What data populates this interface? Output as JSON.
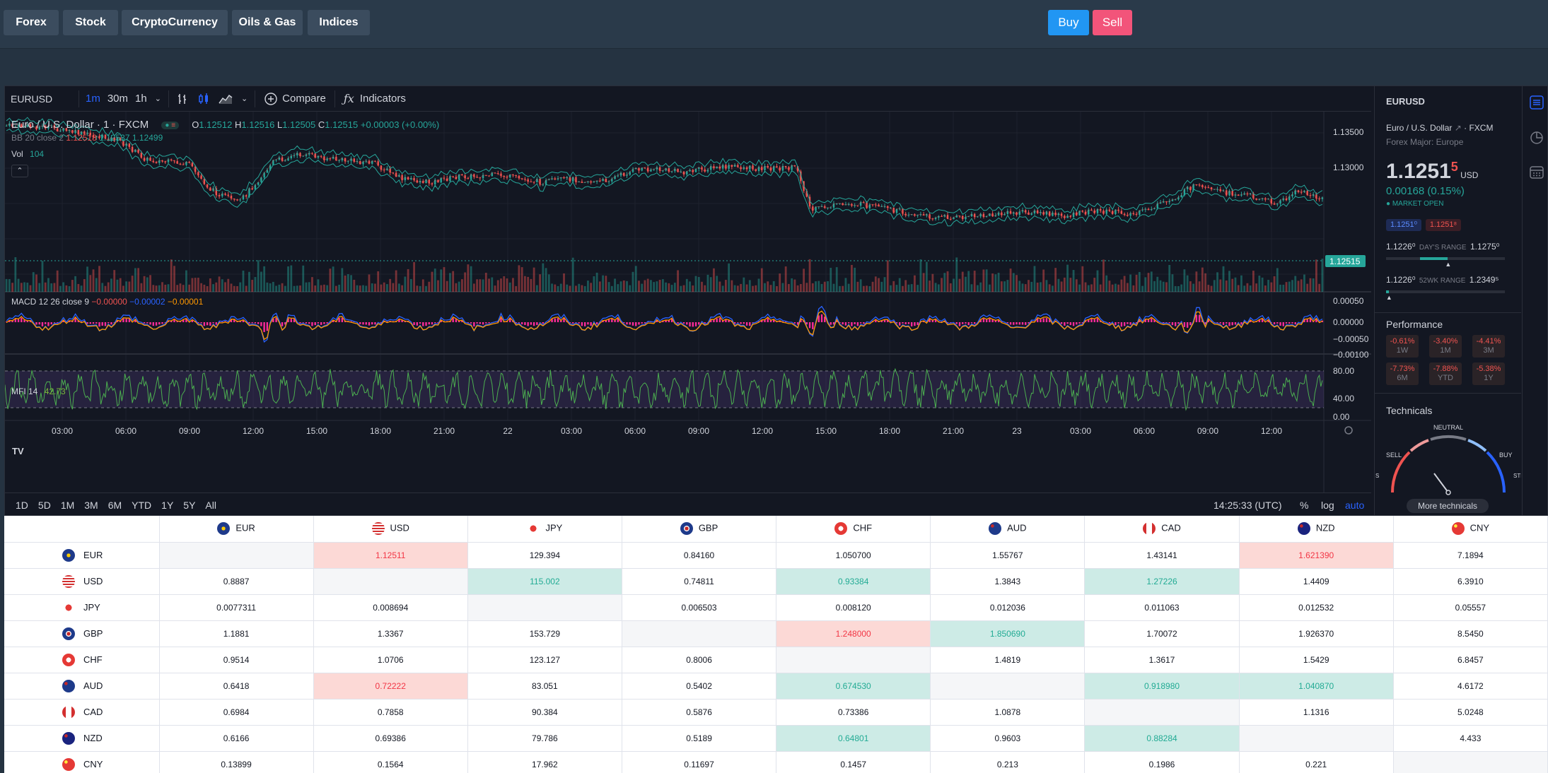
{
  "nav": {
    "categories": [
      "Forex",
      "Stock",
      "CryptoCurrency",
      "Oils & Gas",
      "Indices"
    ],
    "buy_label": "Buy",
    "sell_label": "Sell"
  },
  "chart_toolbar": {
    "symbol": "EURUSD",
    "intervals": [
      "1m",
      "30m",
      "1h"
    ],
    "compare_label": "Compare",
    "indicators_label": "Indicators"
  },
  "chart": {
    "title": "Euro / U.S. Dollar · 1 · FXCM",
    "ohlc": {
      "o_label": "O",
      "o": "1.12512",
      "h_label": "H",
      "h": "1.12516",
      "l_label": "L",
      "l": "1.12505",
      "c_label": "C",
      "c": "1.12515",
      "change": "+0.00003 (+0.00%)"
    },
    "bb": {
      "label": "BB 20 close 2",
      "v1": "1.12518",
      "v2": "1.12537",
      "v3": "1.12499"
    },
    "vol": {
      "label": "Vol",
      "value": "104"
    },
    "macd": {
      "label": "MACD 12 26 close 9",
      "v1": "−0.00000",
      "v2": "−0.00002",
      "v3": "−0.00001"
    },
    "mfi": {
      "label": "MFI 14",
      "value": "42.73"
    },
    "price_ticks": [
      "1.13500",
      "1.13000",
      "1.12515"
    ],
    "macd_ticks": [
      "0.00050",
      "0.00000",
      "−0.00050",
      "−0.00100"
    ],
    "mfi_ticks": [
      "80.00",
      "40.00",
      "0.00"
    ],
    "time_ticks": [
      "03:00",
      "06:00",
      "09:00",
      "12:00",
      "15:00",
      "18:00",
      "21:00",
      "22",
      "03:00",
      "06:00",
      "09:00",
      "12:00",
      "15:00",
      "18:00",
      "21:00",
      "23",
      "03:00",
      "06:00",
      "09:00",
      "12:00"
    ],
    "last_price": "1.12515",
    "logo": "TV"
  },
  "range_bar": {
    "ranges": [
      "1D",
      "5D",
      "1M",
      "3M",
      "6M",
      "YTD",
      "1Y",
      "5Y",
      "All"
    ],
    "clock": "14:25:33 (UTC)",
    "percent": "%",
    "log": "log",
    "auto": "auto"
  },
  "side": {
    "symbol": "EURUSD",
    "name": "Euro / U.S. Dollar",
    "exchange": "· FXCM",
    "category": "Forex Major: Europe",
    "price_main": "1.1251",
    "price_last": "5",
    "currency": "USD",
    "change": "0.00168 (0.15%)",
    "market_status": "● MARKET OPEN",
    "bid": "1.1251⁰",
    "ask": "1.1251⁸",
    "days_range_low": "1.1226⁰",
    "days_range_label": "DAY'S RANGE",
    "days_range_high": "1.1275⁰",
    "wk_range_low": "1.1226⁰",
    "wk_range_label": "52WK RANGE",
    "wk_range_high": "1.2349⁵",
    "performance_title": "Performance",
    "performance": [
      {
        "value": "-0.61%",
        "label": "1W"
      },
      {
        "value": "-3.40%",
        "label": "1M"
      },
      {
        "value": "-4.41%",
        "label": "3M"
      },
      {
        "value": "-7.73%",
        "label": "6M"
      },
      {
        "value": "-7.88%",
        "label": "YTD"
      },
      {
        "value": "-5.38%",
        "label": "1Y"
      }
    ],
    "technicals_title": "Technicals",
    "gauge": {
      "neutral": "NEUTRAL",
      "sell": "SELL",
      "buy": "BUY",
      "strong_sell_partial": "S",
      "strong_buy_partial": "STR B"
    },
    "more_technicals": "More technicals"
  },
  "cross_rates": {
    "columns": [
      "EUR",
      "USD",
      "JPY",
      "GBP",
      "CHF",
      "AUD",
      "CAD",
      "NZD",
      "CNY"
    ],
    "rows": [
      {
        "currency": "EUR",
        "values": [
          "",
          "1.12511",
          "129.394",
          "0.84160",
          "1.050700",
          "1.55767",
          "1.43141",
          "1.621390",
          "7.1894"
        ]
      },
      {
        "currency": "USD",
        "values": [
          "0.8887",
          "",
          "115.002",
          "0.74811",
          "0.93384",
          "1.3843",
          "1.27226",
          "1.4409",
          "6.3910"
        ]
      },
      {
        "currency": "JPY",
        "values": [
          "0.0077311",
          "0.008694",
          "",
          "0.006503",
          "0.008120",
          "0.012036",
          "0.011063",
          "0.012532",
          "0.05557"
        ]
      },
      {
        "currency": "GBP",
        "values": [
          "1.1881",
          "1.3367",
          "153.729",
          "",
          "1.248000",
          "1.850690",
          "1.70072",
          "1.926370",
          "8.5450"
        ]
      },
      {
        "currency": "CHF",
        "values": [
          "0.9514",
          "1.0706",
          "123.127",
          "0.8006",
          "",
          "1.4819",
          "1.3617",
          "1.5429",
          "6.8457"
        ]
      },
      {
        "currency": "AUD",
        "values": [
          "0.6418",
          "0.72222",
          "83.051",
          "0.5402",
          "0.674530",
          "",
          "0.918980",
          "1.040870",
          "4.6172"
        ]
      },
      {
        "currency": "CAD",
        "values": [
          "0.6984",
          "0.7858",
          "90.384",
          "0.5876",
          "0.73386",
          "1.0878",
          "",
          "1.1316",
          "5.0248"
        ]
      },
      {
        "currency": "NZD",
        "values": [
          "0.6166",
          "0.69386",
          "79.786",
          "0.5189",
          "0.64801",
          "0.9603",
          "0.88284",
          "",
          "4.433"
        ]
      },
      {
        "currency": "CNY",
        "values": [
          "0.13899",
          "0.1564",
          "17.962",
          "0.11697",
          "0.1457",
          "0.213",
          "0.1986",
          "0.221",
          ""
        ]
      }
    ]
  },
  "colors": {
    "up": "#26a69a",
    "down": "#ef5350",
    "buy": "#2196f3",
    "sell": "#f2547a",
    "accent": "#2962ff"
  }
}
